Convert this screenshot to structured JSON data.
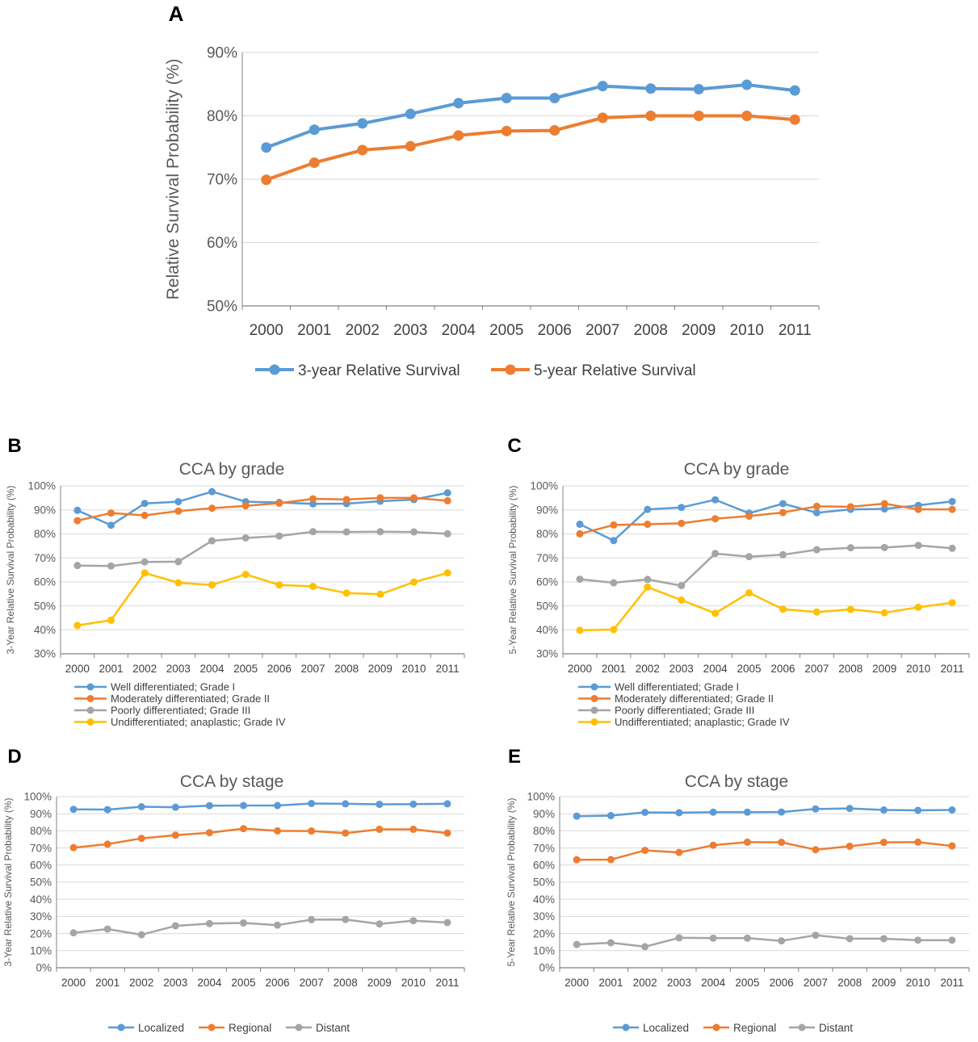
{
  "colors": {
    "blue": "#5b9bd5",
    "orange": "#ed7d31",
    "gray": "#a5a5a5",
    "yellow": "#ffc000",
    "grid": "#d9d9d9",
    "axis": "#808080",
    "text": "#595959"
  },
  "chart_data": [
    {
      "panel": "A",
      "type": "line",
      "title": "",
      "xlabel": "",
      "ylabel": "Relative Survival Probability (%)",
      "categories": [
        "2000",
        "2001",
        "2002",
        "2003",
        "2004",
        "2005",
        "2006",
        "2007",
        "2008",
        "2009",
        "2010",
        "2011"
      ],
      "yticks": [
        "50%",
        "60%",
        "70%",
        "80%",
        "90%"
      ],
      "ylim": [
        50,
        90
      ],
      "grid": true,
      "legend_position": "bottom",
      "series": [
        {
          "name": "3-year Relative Survival",
          "color": "blue",
          "values": [
            75.0,
            77.8,
            78.8,
            80.3,
            82.0,
            82.8,
            82.8,
            84.7,
            84.3,
            84.2,
            84.9,
            84.0
          ]
        },
        {
          "name": "5-year Relative Survival",
          "color": "orange",
          "values": [
            69.9,
            72.6,
            74.6,
            75.2,
            76.9,
            77.6,
            77.7,
            79.7,
            80.0,
            80.0,
            80.0,
            79.4
          ]
        }
      ]
    },
    {
      "panel": "B",
      "type": "line",
      "title": "CCA by grade",
      "xlabel": "",
      "ylabel": "3-Year Relative Survival Probability (%)",
      "categories": [
        "2000",
        "2001",
        "2002",
        "2003",
        "2004",
        "2005",
        "2006",
        "2007",
        "2008",
        "2009",
        "2010",
        "2011"
      ],
      "yticks": [
        "30%",
        "40%",
        "50%",
        "60%",
        "70%",
        "80%",
        "90%",
        "100%"
      ],
      "ylim": [
        30,
        100
      ],
      "grid": true,
      "legend_position": "bottom",
      "series": [
        {
          "name": "Well differentiated; Grade I",
          "color": "blue",
          "values": [
            89.8,
            83.6,
            92.7,
            93.4,
            97.6,
            93.4,
            93.1,
            92.5,
            92.6,
            93.6,
            94.3,
            97.1
          ]
        },
        {
          "name": "Moderately differentiated; Grade II",
          "color": "orange",
          "values": [
            85.5,
            88.7,
            87.7,
            89.5,
            90.7,
            91.7,
            92.8,
            94.6,
            94.3,
            95.0,
            95.0,
            93.8
          ]
        },
        {
          "name": "Poorly differentiated; Grade III",
          "color": "gray",
          "values": [
            66.8,
            66.6,
            68.3,
            68.4,
            77.1,
            78.3,
            79.1,
            80.9,
            80.8,
            80.9,
            80.8,
            80.0
          ]
        },
        {
          "name": "Undifferentiated; anaplastic; Grade IV",
          "color": "yellow",
          "values": [
            41.8,
            44.0,
            63.7,
            59.6,
            58.7,
            63.1,
            58.7,
            58.1,
            55.3,
            54.8,
            59.9,
            63.7
          ]
        }
      ]
    },
    {
      "panel": "C",
      "type": "line",
      "title": "CCA by grade",
      "xlabel": "",
      "ylabel": "5-Year Relative Survival Probability (%)",
      "categories": [
        "2000",
        "2001",
        "2002",
        "2003",
        "2004",
        "2005",
        "2006",
        "2007",
        "2008",
        "2009",
        "2010",
        "2011"
      ],
      "yticks": [
        "30%",
        "40%",
        "50%",
        "60%",
        "70%",
        "80%",
        "90%",
        "100%"
      ],
      "ylim": [
        30,
        100
      ],
      "grid": true,
      "legend_position": "bottom",
      "series": [
        {
          "name": "Well differentiated; Grade I",
          "color": "blue",
          "values": [
            84.0,
            77.2,
            90.2,
            91.0,
            94.2,
            88.6,
            92.6,
            88.8,
            90.2,
            90.4,
            91.9,
            93.5
          ]
        },
        {
          "name": "Moderately differentiated; Grade II",
          "color": "orange",
          "values": [
            80.0,
            83.7,
            84.0,
            84.4,
            86.3,
            87.4,
            88.9,
            91.5,
            91.3,
            92.6,
            90.2,
            90.2
          ]
        },
        {
          "name": "Poorly differentiated; Grade III",
          "color": "gray",
          "values": [
            61.1,
            59.6,
            61.0,
            58.4,
            71.8,
            70.5,
            71.3,
            73.4,
            74.2,
            74.3,
            75.2,
            74.0
          ]
        },
        {
          "name": "Undifferentiated; anaplastic; Grade IV",
          "color": "yellow",
          "values": [
            39.8,
            40.1,
            57.8,
            52.4,
            46.9,
            55.4,
            48.6,
            47.4,
            48.5,
            47.1,
            49.4,
            51.3
          ]
        }
      ]
    },
    {
      "panel": "D",
      "type": "line",
      "title": "CCA by stage",
      "xlabel": "",
      "ylabel": "3-Year Relative Survival Probability (%)",
      "categories": [
        "2000",
        "2001",
        "2002",
        "2003",
        "2004",
        "2005",
        "2006",
        "2007",
        "2008",
        "2009",
        "2010",
        "2011"
      ],
      "yticks": [
        "0%",
        "10%",
        "20%",
        "30%",
        "40%",
        "50%",
        "60%",
        "70%",
        "80%",
        "90%",
        "100%"
      ],
      "ylim": [
        0,
        100
      ],
      "grid": true,
      "legend_position": "bottom",
      "series": [
        {
          "name": "Localized",
          "color": "blue",
          "values": [
            92.6,
            92.4,
            94.1,
            93.8,
            94.7,
            94.8,
            94.8,
            96.0,
            95.8,
            95.5,
            95.6,
            95.8
          ]
        },
        {
          "name": "Regional",
          "color": "orange",
          "values": [
            70.2,
            72.2,
            75.6,
            77.5,
            78.9,
            81.3,
            80.0,
            79.9,
            78.7,
            80.9,
            80.9,
            78.7
          ]
        },
        {
          "name": "Distant",
          "color": "gray",
          "values": [
            20.4,
            22.6,
            19.3,
            24.5,
            25.8,
            26.2,
            24.9,
            28.1,
            28.2,
            25.6,
            27.5,
            26.4
          ]
        }
      ]
    },
    {
      "panel": "E",
      "type": "line",
      "title": "CCA by stage",
      "xlabel": "",
      "ylabel": "5-Year Relative Survival Probability (%)",
      "categories": [
        "2000",
        "2001",
        "2002",
        "2003",
        "2004",
        "2005",
        "2006",
        "2007",
        "2008",
        "2009",
        "2010",
        "2011"
      ],
      "yticks": [
        "0%",
        "10%",
        "20%",
        "30%",
        "40%",
        "50%",
        "60%",
        "70%",
        "80%",
        "90%",
        "100%"
      ],
      "ylim": [
        0,
        100
      ],
      "grid": true,
      "legend_position": "bottom",
      "series": [
        {
          "name": "Localized",
          "color": "blue",
          "values": [
            88.6,
            88.9,
            90.8,
            90.6,
            90.9,
            90.9,
            91.0,
            92.8,
            93.1,
            92.2,
            92.0,
            92.2
          ]
        },
        {
          "name": "Regional",
          "color": "orange",
          "values": [
            63.1,
            63.2,
            68.6,
            67.4,
            71.6,
            73.4,
            73.3,
            69.0,
            71.0,
            73.3,
            73.4,
            71.2
          ]
        },
        {
          "name": "Distant",
          "color": "gray",
          "values": [
            13.6,
            14.6,
            12.3,
            17.5,
            17.3,
            17.3,
            15.7,
            19.0,
            17.0,
            17.0,
            16.1,
            16.1
          ]
        }
      ]
    }
  ]
}
